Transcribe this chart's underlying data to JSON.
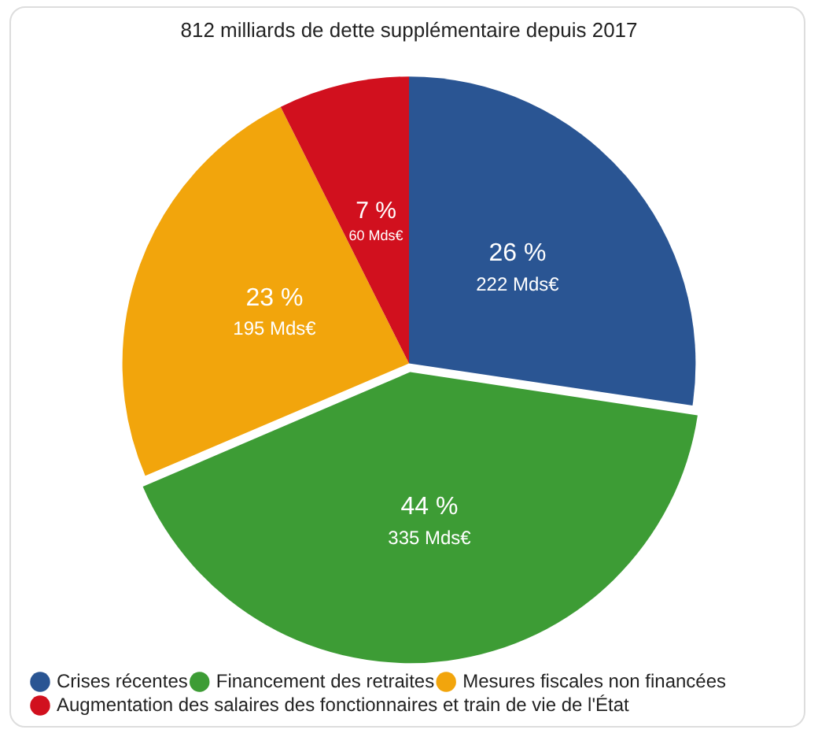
{
  "chart_data": {
    "type": "pie",
    "title": "812 milliards de dette supplémentaire depuis 2017",
    "categories": [
      "Crises récentes",
      "Financement des retraites",
      "Mesures fiscales non financées",
      "Augmentation des salaires des fonctionnaires et train de vie de l'État"
    ],
    "values": [
      222,
      335,
      195,
      60
    ],
    "colors": [
      "#2a5593",
      "#3d9c35",
      "#f2a50c",
      "#d1101e"
    ],
    "value_labels": [
      "26 %\n222 Mds€",
      "44 %\n335 Mds€",
      "23 %\n195 Mds€",
      "7 %\n60 Mds€"
    ],
    "legend": "bottom left"
  }
}
